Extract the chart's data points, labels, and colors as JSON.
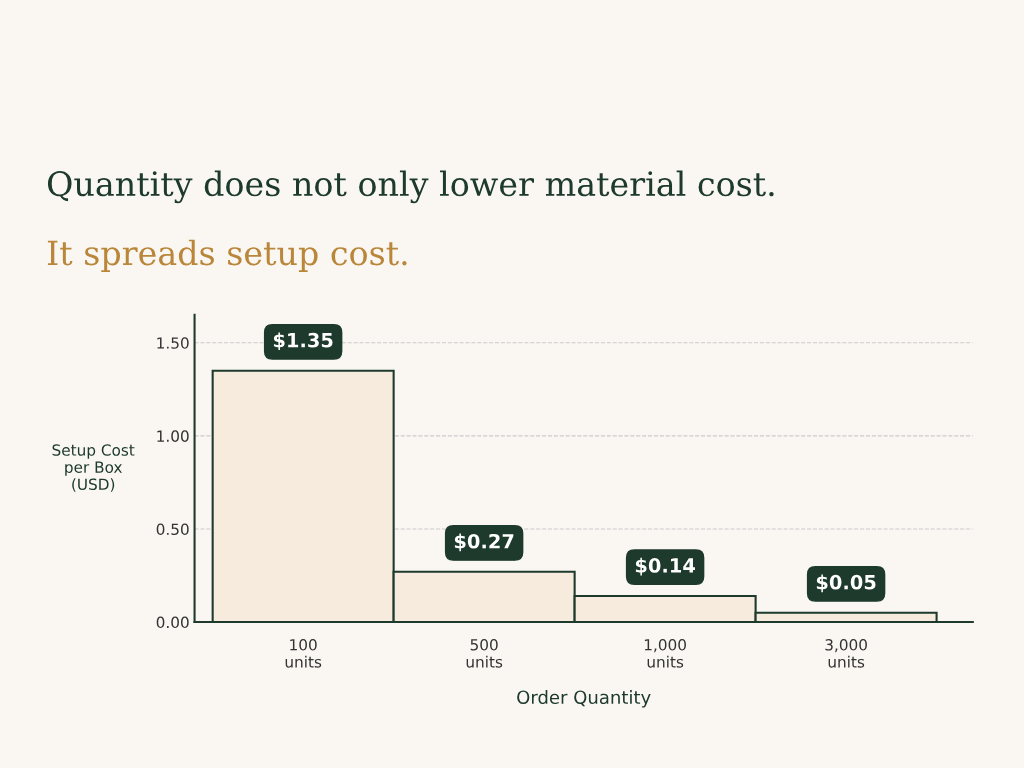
{
  "chart_data": {
    "type": "bar",
    "title": "Quantity does not only lower material cost.",
    "subtitle": "It spreads setup cost.",
    "xlabel": "Order Quantity",
    "ylabel": "Setup Cost\nper Box\n(USD)",
    "categories": [
      "100\nunits",
      "500\nunits",
      "1,000\nunits",
      "3,000\nunits"
    ],
    "values": [
      1.35,
      0.27,
      0.14,
      0.05
    ],
    "color": "#f6ebdd",
    "value_labels": [
      "$1.35",
      "$0.27",
      "$0.14",
      "$0.05"
    ],
    "ylim": [
      0,
      1.65
    ],
    "yticks": [
      {
        "value": 0,
        "label": "0.00"
      },
      {
        "value": 0.5,
        "label": "0.50"
      },
      {
        "value": 1.0,
        "label": "1.00"
      },
      {
        "value": 1.5,
        "label": "1.50"
      }
    ],
    "grid": "y",
    "line_style": "dashed"
  }
}
